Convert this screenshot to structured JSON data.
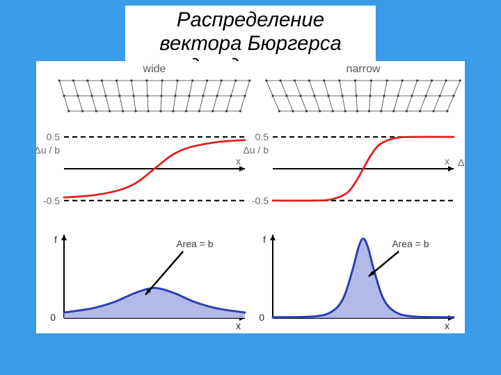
{
  "page": {
    "background": "#3a9ce8"
  },
  "title": {
    "line1": "Распределение вектора Бюргерса",
    "line2": "в ядре дислокации",
    "fontsize_pt": 22,
    "color": "#000000",
    "box_background": "#ffffff"
  },
  "figure": {
    "background": "#ffffff",
    "column_labels": {
      "left": "wide",
      "right": "narrow",
      "fontsize": 16,
      "color": "#595959"
    },
    "lattice": {
      "rows": 3,
      "cols": 14,
      "dot_radius": 1.6,
      "dot_color": "#3a3a3a",
      "bond_color": "#3a3a3a",
      "wide_max_shear": 0.35,
      "narrow_max_shear": 0.48
    },
    "disp_plot": {
      "ylim": [
        -0.6,
        0.6
      ],
      "ref_lines": [
        0.5,
        -0.5
      ],
      "ref_style": {
        "dash": "7,5",
        "width": 2.2,
        "color": "#000000"
      },
      "axis_color": "#000000",
      "axis_width": 2,
      "curve_color": "#e02020",
      "curve_width": 2.8,
      "label_yaxis": "Δu / b",
      "label_xaxis": "x",
      "tick_labels": {
        "top": "0.5",
        "bottom": "-0.5"
      },
      "label_color": "#6a6a6a",
      "label_fontsize": 14,
      "extra_right_label": "Δu",
      "wide_curve": [
        [
          -1,
          -0.45
        ],
        [
          -0.7,
          -0.42
        ],
        [
          -0.4,
          -0.34
        ],
        [
          -0.2,
          -0.22
        ],
        [
          0,
          0
        ],
        [
          0.2,
          0.22
        ],
        [
          0.4,
          0.34
        ],
        [
          0.7,
          0.42
        ],
        [
          1,
          0.45
        ]
      ],
      "narrow_curve": [
        [
          -1,
          -0.5
        ],
        [
          -0.55,
          -0.5
        ],
        [
          -0.35,
          -0.48
        ],
        [
          -0.18,
          -0.38
        ],
        [
          -0.08,
          -0.2
        ],
        [
          0,
          0
        ],
        [
          0.08,
          0.2
        ],
        [
          0.18,
          0.38
        ],
        [
          0.35,
          0.48
        ],
        [
          0.55,
          0.5
        ],
        [
          1,
          0.5
        ]
      ]
    },
    "dens_plot": {
      "ylim": [
        0,
        1.05
      ],
      "axis_color": "#000000",
      "axis_width": 2,
      "curve_color": "#2a3fb5",
      "curve_width": 3,
      "fill_color": "#aab3e6",
      "fill_opacity": 0.9,
      "label_yaxis": "f",
      "label_xaxis": "x",
      "zero_label": "0",
      "area_label": "Area = b",
      "area_label_fontsize": 14,
      "area_label_color": "#3a3a3a",
      "arrow_color": "#000000",
      "wide_curve": [
        [
          -1,
          0.07
        ],
        [
          -0.7,
          0.12
        ],
        [
          -0.45,
          0.2
        ],
        [
          -0.25,
          0.3
        ],
        [
          -0.1,
          0.36
        ],
        [
          0,
          0.38
        ],
        [
          0.1,
          0.36
        ],
        [
          0.25,
          0.3
        ],
        [
          0.45,
          0.2
        ],
        [
          0.7,
          0.12
        ],
        [
          1,
          0.07
        ]
      ],
      "narrow_curve": [
        [
          -1,
          0.01
        ],
        [
          -0.55,
          0.02
        ],
        [
          -0.35,
          0.08
        ],
        [
          -0.22,
          0.25
        ],
        [
          -0.12,
          0.6
        ],
        [
          -0.05,
          0.9
        ],
        [
          0,
          1.0
        ],
        [
          0.05,
          0.9
        ],
        [
          0.12,
          0.6
        ],
        [
          0.22,
          0.25
        ],
        [
          0.35,
          0.08
        ],
        [
          0.55,
          0.02
        ],
        [
          1,
          0.01
        ]
      ]
    }
  }
}
